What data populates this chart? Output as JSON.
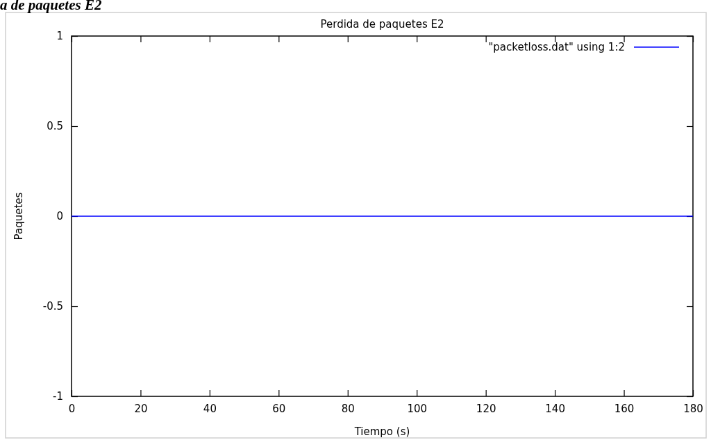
{
  "chart_data": {
    "type": "line",
    "title": "Perdida de paquetes E2",
    "xlabel": "Tiempo (s)",
    "ylabel": "Paquetes",
    "annotations": [
      "a de paquetes E2"
    ],
    "x": [
      0,
      180
    ],
    "series": [
      {
        "name": "\"packetloss.dat\" using 1:2",
        "color": "#0000ff",
        "values": [
          0,
          0
        ]
      }
    ],
    "xlim": [
      0,
      180
    ],
    "xticks": [
      0,
      20,
      40,
      60,
      80,
      100,
      120,
      140,
      160,
      180
    ],
    "ylim": [
      -1,
      1
    ],
    "yticks": [
      -1,
      -0.5,
      0,
      0.5,
      1
    ],
    "grid": false,
    "legend": "top right",
    "marker": "none",
    "line_style": "solid"
  }
}
